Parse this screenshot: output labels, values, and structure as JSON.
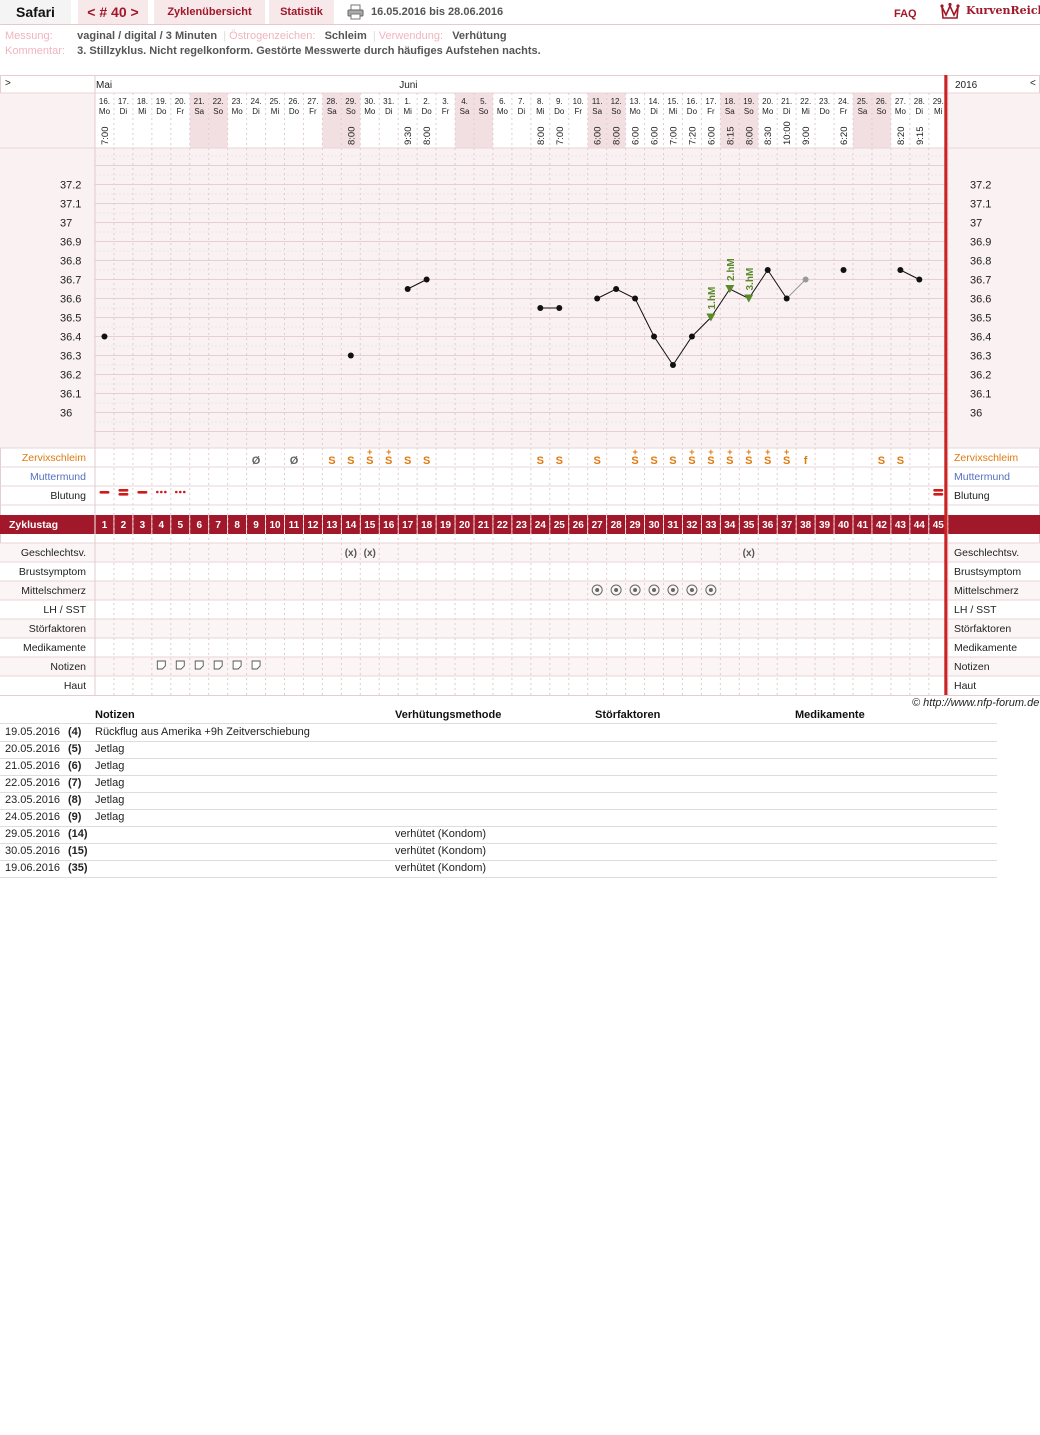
{
  "topbar": {
    "user": "Safari",
    "cycle_nav": "< # 40 >",
    "overview": "Zyklenübersicht",
    "statistics": "Statistik",
    "print_icon": "printer-icon",
    "date_range": "16.05.2016 bis 28.06.2016",
    "faq": "FAQ",
    "brand": "KurvenReich",
    "logo_icon": "crown-icon"
  },
  "meta": {
    "measurement_label": "Messung:",
    "measurement_value": "vaginal / digital / 3 Minuten",
    "estrogen_label": "Östrogenzeichen:",
    "estrogen_value": "Schleim",
    "usage_label": "Verwendung:",
    "usage_value": "Verhütung",
    "comment_label": "Kommentar:",
    "comment_value": "3. Stillzyklus. Nicht regelkonform. Gestörte Messwerte durch häufiges Aufstehen nachts."
  },
  "nav": {
    "prev": ">",
    "next": "<",
    "year": "2016"
  },
  "chart_data": {
    "type": "line",
    "months": [
      {
        "label": "Mai",
        "day": 1
      },
      {
        "label": "Juni",
        "day": 17
      }
    ],
    "dates": [
      "16.",
      "17.",
      "18.",
      "19.",
      "20.",
      "21.",
      "22.",
      "23.",
      "24.",
      "25.",
      "26.",
      "27.",
      "28.",
      "29.",
      "30.",
      "31.",
      "1.",
      "2.",
      "3.",
      "4.",
      "5.",
      "6.",
      "7.",
      "8.",
      "9.",
      "10.",
      "11.",
      "12.",
      "13.",
      "14.",
      "15.",
      "16.",
      "17.",
      "18.",
      "19.",
      "20.",
      "21.",
      "22.",
      "23.",
      "24.",
      "25.",
      "26.",
      "27.",
      "28.",
      "29."
    ],
    "weekdays": [
      "Mo",
      "Di",
      "Mi",
      "Do",
      "Fr",
      "Sa",
      "So",
      "Mo",
      "Di",
      "Mi",
      "Do",
      "Fr",
      "Sa",
      "So",
      "Mo",
      "Di",
      "Mi",
      "Do",
      "Fr",
      "Sa",
      "So",
      "Mo",
      "Di",
      "Mi",
      "Do",
      "Fr",
      "Sa",
      "So",
      "Mo",
      "Di",
      "Mi",
      "Do",
      "Fr",
      "Sa",
      "So",
      "Mo",
      "Di",
      "Mi",
      "Do",
      "Fr",
      "Sa",
      "So",
      "Mo",
      "Di",
      "Mi"
    ],
    "times": {
      "1": "7:00",
      "14": "8:00",
      "17": "9:30",
      "18": "8:00",
      "24": "8:00",
      "25": "7:00",
      "27": "6:00",
      "28": "8:00",
      "29": "6:00",
      "30": "6:00",
      "31": "7:00",
      "32": "7:20",
      "33": "6:00",
      "34": "8:15",
      "35": "8:00",
      "36": "8:30",
      "37": "10:00",
      "38": "9:00",
      "40": "6:20",
      "43": "8:20",
      "44": "9:15"
    },
    "yticks": [
      "37.2",
      "37.1",
      "37",
      "36.9",
      "36.8",
      "36.7",
      "36.6",
      "36.5",
      "36.4",
      "36.3",
      "36.2",
      "36.1",
      "36"
    ],
    "ylim": [
      35.9,
      37.4
    ],
    "temperatures": [
      {
        "day": 1,
        "t": 36.4
      },
      {
        "day": 14,
        "t": 36.3
      },
      {
        "day": 17,
        "t": 36.65
      },
      {
        "day": 18,
        "t": 36.7
      },
      {
        "day": 24,
        "t": 36.55
      },
      {
        "day": 25,
        "t": 36.55
      },
      {
        "day": 27,
        "t": 36.6
      },
      {
        "day": 28,
        "t": 36.65
      },
      {
        "day": 29,
        "t": 36.6
      },
      {
        "day": 30,
        "t": 36.4
      },
      {
        "day": 31,
        "t": 36.25
      },
      {
        "day": 32,
        "t": 36.4
      },
      {
        "day": 33,
        "t": 36.5
      },
      {
        "day": 34,
        "t": 36.65
      },
      {
        "day": 35,
        "t": 36.6
      },
      {
        "day": 36,
        "t": 36.75
      },
      {
        "day": 37,
        "t": 36.6
      },
      {
        "day": 38,
        "t": 36.7,
        "excluded": true
      },
      {
        "day": 40,
        "t": 36.75
      },
      {
        "day": 43,
        "t": 36.75
      },
      {
        "day": 44,
        "t": 36.7
      }
    ],
    "line_segments": [
      [
        17,
        18
      ],
      [
        24,
        25
      ],
      [
        27,
        37
      ],
      [
        43,
        44
      ]
    ],
    "higher_measurements": [
      {
        "day": 33,
        "label": "1.hM"
      },
      {
        "day": 34,
        "label": "2.hM"
      },
      {
        "day": 35,
        "label": "3.hM"
      }
    ],
    "cervical_mucus": {
      "9": "Ø",
      "11": "Ø",
      "13": "S",
      "14": "S",
      "15": "S+",
      "16": "S+",
      "17": "S",
      "18": "S",
      "24": "S",
      "25": "S",
      "27": "S",
      "29": "S+",
      "30": "S",
      "31": "S",
      "32": "S+",
      "33": "S+",
      "34": "S+",
      "35": "S+",
      "36": "S+",
      "37": "S+",
      "38": "f",
      "42": "S",
      "43": "S"
    },
    "bleeding": {
      "1": "medium",
      "2": "heavy",
      "3": "medium",
      "4": "light",
      "5": "light",
      "45": "heavy"
    },
    "cycle_days": 45,
    "intercourse_days": [
      14,
      15,
      35
    ],
    "mittelschmerz_days": [
      27,
      28,
      29,
      30,
      31,
      32,
      33
    ],
    "note_days": [
      4,
      5,
      6,
      7,
      8,
      9
    ],
    "current_day": 45,
    "colors": {
      "grid_bg": "#f9f1f2",
      "weekend_bg": "#f2dfe2",
      "accent": "#a0182a",
      "mucus": "#e07a10",
      "cervix": "#5570c0",
      "hm": "#5a8a2a",
      "today_line": "#cc2222"
    }
  },
  "rows": {
    "mucus": "Zervixschleim",
    "cervix": "Muttermund",
    "bleeding": "Blutung",
    "cycleday": "Zyklustag",
    "extra": [
      "Geschlechtsv.",
      "Brustsymptom",
      "Mittelschmerz",
      "LH / SST",
      "Störfaktoren",
      "Medikamente",
      "Notizen",
      "Haut"
    ]
  },
  "copyright": "© http://www.nfp-forum.de",
  "notes": {
    "headers": [
      "Notizen",
      "Verhütungsmethode",
      "Störfaktoren",
      "Medikamente"
    ],
    "rows": [
      {
        "date": "19.05.2016",
        "day": "(4)",
        "note": "Rückflug aus Amerika +9h Zeitverschiebung",
        "method": ""
      },
      {
        "date": "20.05.2016",
        "day": "(5)",
        "note": "Jetlag",
        "method": ""
      },
      {
        "date": "21.05.2016",
        "day": "(6)",
        "note": "Jetlag",
        "method": ""
      },
      {
        "date": "22.05.2016",
        "day": "(7)",
        "note": "Jetlag",
        "method": ""
      },
      {
        "date": "23.05.2016",
        "day": "(8)",
        "note": "Jetlag",
        "method": ""
      },
      {
        "date": "24.05.2016",
        "day": "(9)",
        "note": "Jetlag",
        "method": ""
      },
      {
        "date": "29.05.2016",
        "day": "(14)",
        "note": "",
        "method": "verhütet (Kondom)"
      },
      {
        "date": "30.05.2016",
        "day": "(15)",
        "note": "",
        "method": "verhütet (Kondom)"
      },
      {
        "date": "19.06.2016",
        "day": "(35)",
        "note": "",
        "method": "verhütet (Kondom)"
      }
    ]
  }
}
